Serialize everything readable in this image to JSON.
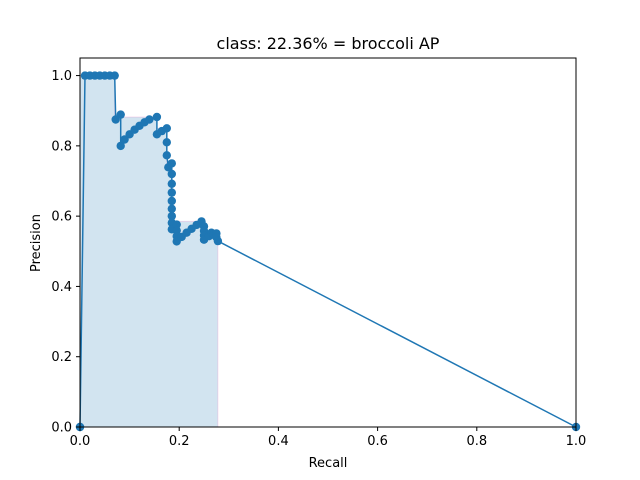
{
  "chart_data": {
    "type": "line",
    "title": "class: 22.36% = broccoli AP",
    "xlabel": "Recall",
    "ylabel": "Precision",
    "xlim": [
      0.0,
      1.0
    ],
    "ylim": [
      0.0,
      1.05
    ],
    "xticks": [
      0.0,
      0.2,
      0.4,
      0.6,
      0.8,
      1.0
    ],
    "yticks": [
      0.0,
      0.2,
      0.4,
      0.6,
      0.8,
      1.0
    ],
    "xtick_labels": [
      "0.0",
      "0.2",
      "0.4",
      "0.6",
      "0.8",
      "1.0"
    ],
    "ytick_labels": [
      "0.0",
      "0.2",
      "0.4",
      "0.6",
      "0.8",
      "1.0"
    ],
    "grid": false,
    "colors": {
      "line": "#1f77b4",
      "fill": "#1f77b4",
      "fill_edge": "#e377c2"
    },
    "series": [
      {
        "values": [
          [
            0.0,
            0.0
          ],
          [
            0.0,
            0.0
          ],
          [
            0.01,
            1.0
          ],
          [
            0.02,
            1.0
          ],
          [
            0.03,
            1.0
          ],
          [
            0.04,
            1.0
          ],
          [
            0.05,
            1.0
          ],
          [
            0.06,
            1.0
          ],
          [
            0.07,
            1.0
          ],
          [
            0.072,
            0.875
          ],
          [
            0.082,
            0.889
          ],
          [
            0.082,
            0.8
          ],
          [
            0.09,
            0.818
          ],
          [
            0.1,
            0.833
          ],
          [
            0.11,
            0.846
          ],
          [
            0.12,
            0.857
          ],
          [
            0.13,
            0.867
          ],
          [
            0.14,
            0.875
          ],
          [
            0.155,
            0.882
          ],
          [
            0.155,
            0.833
          ],
          [
            0.165,
            0.842
          ],
          [
            0.175,
            0.85
          ],
          [
            0.175,
            0.81
          ],
          [
            0.175,
            0.773
          ],
          [
            0.178,
            0.739
          ],
          [
            0.185,
            0.75
          ],
          [
            0.185,
            0.72
          ],
          [
            0.185,
            0.692
          ],
          [
            0.185,
            0.667
          ],
          [
            0.185,
            0.643
          ],
          [
            0.185,
            0.621
          ],
          [
            0.185,
            0.6
          ],
          [
            0.185,
            0.581
          ],
          [
            0.185,
            0.5625
          ],
          [
            0.195,
            0.576
          ],
          [
            0.195,
            0.559
          ],
          [
            0.195,
            0.543
          ],
          [
            0.195,
            0.528
          ],
          [
            0.205,
            0.541
          ],
          [
            0.215,
            0.553
          ],
          [
            0.225,
            0.564
          ],
          [
            0.235,
            0.575
          ],
          [
            0.245,
            0.585
          ],
          [
            0.25,
            0.571
          ],
          [
            0.25,
            0.558
          ],
          [
            0.25,
            0.545
          ],
          [
            0.25,
            0.533
          ],
          [
            0.26,
            0.543
          ],
          [
            0.265,
            0.553
          ],
          [
            0.27,
            0.548
          ],
          [
            0.275,
            0.551
          ],
          [
            0.275,
            0.54
          ],
          [
            0.278,
            0.529
          ],
          [
            1.0,
            0.0
          ]
        ]
      }
    ],
    "ap_envelope": [
      [
        0.0,
        0.0
      ],
      [
        0.0,
        1.0
      ],
      [
        0.07,
        1.0
      ],
      [
        0.07,
        0.889
      ],
      [
        0.082,
        0.889
      ],
      [
        0.082,
        0.882
      ],
      [
        0.155,
        0.882
      ],
      [
        0.155,
        0.85
      ],
      [
        0.175,
        0.85
      ],
      [
        0.175,
        0.75
      ],
      [
        0.185,
        0.75
      ],
      [
        0.185,
        0.585
      ],
      [
        0.245,
        0.585
      ],
      [
        0.245,
        0.553
      ],
      [
        0.265,
        0.553
      ],
      [
        0.265,
        0.551
      ],
      [
        0.278,
        0.551
      ],
      [
        0.278,
        0.0
      ]
    ]
  }
}
